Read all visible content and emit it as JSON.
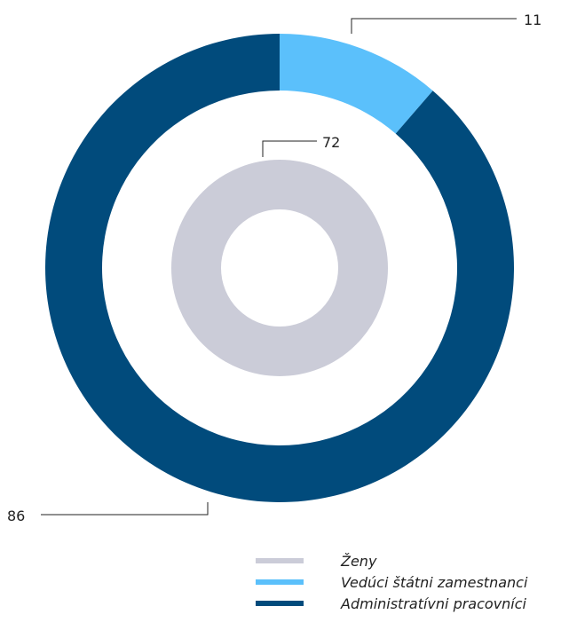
{
  "chart_data": {
    "type": "pie",
    "style": "concentric donut",
    "rings": [
      {
        "name": "outer",
        "slices": [
          {
            "category": "Vedúci štátni zamestnanci",
            "value": 11,
            "color": "#5BC0FB"
          },
          {
            "category": "Administratívni pracovníci",
            "value": 86,
            "color": "#014B7C"
          }
        ]
      },
      {
        "name": "inner",
        "slices": [
          {
            "category": "Ženy",
            "value": 72,
            "color": "#CBCCD8"
          }
        ]
      }
    ],
    "data_labels": {
      "outer_small": "11",
      "inner": "72",
      "outer_large": "86"
    },
    "legend": {
      "position": "bottom-right",
      "items": [
        {
          "label": "Ženy",
          "color": "#CBCCD8"
        },
        {
          "label": "Vedúci štátni zamestnanci",
          "color": "#5BC0FB"
        },
        {
          "label": "Administratívni pracovníci",
          "color": "#014B7C"
        }
      ]
    }
  }
}
